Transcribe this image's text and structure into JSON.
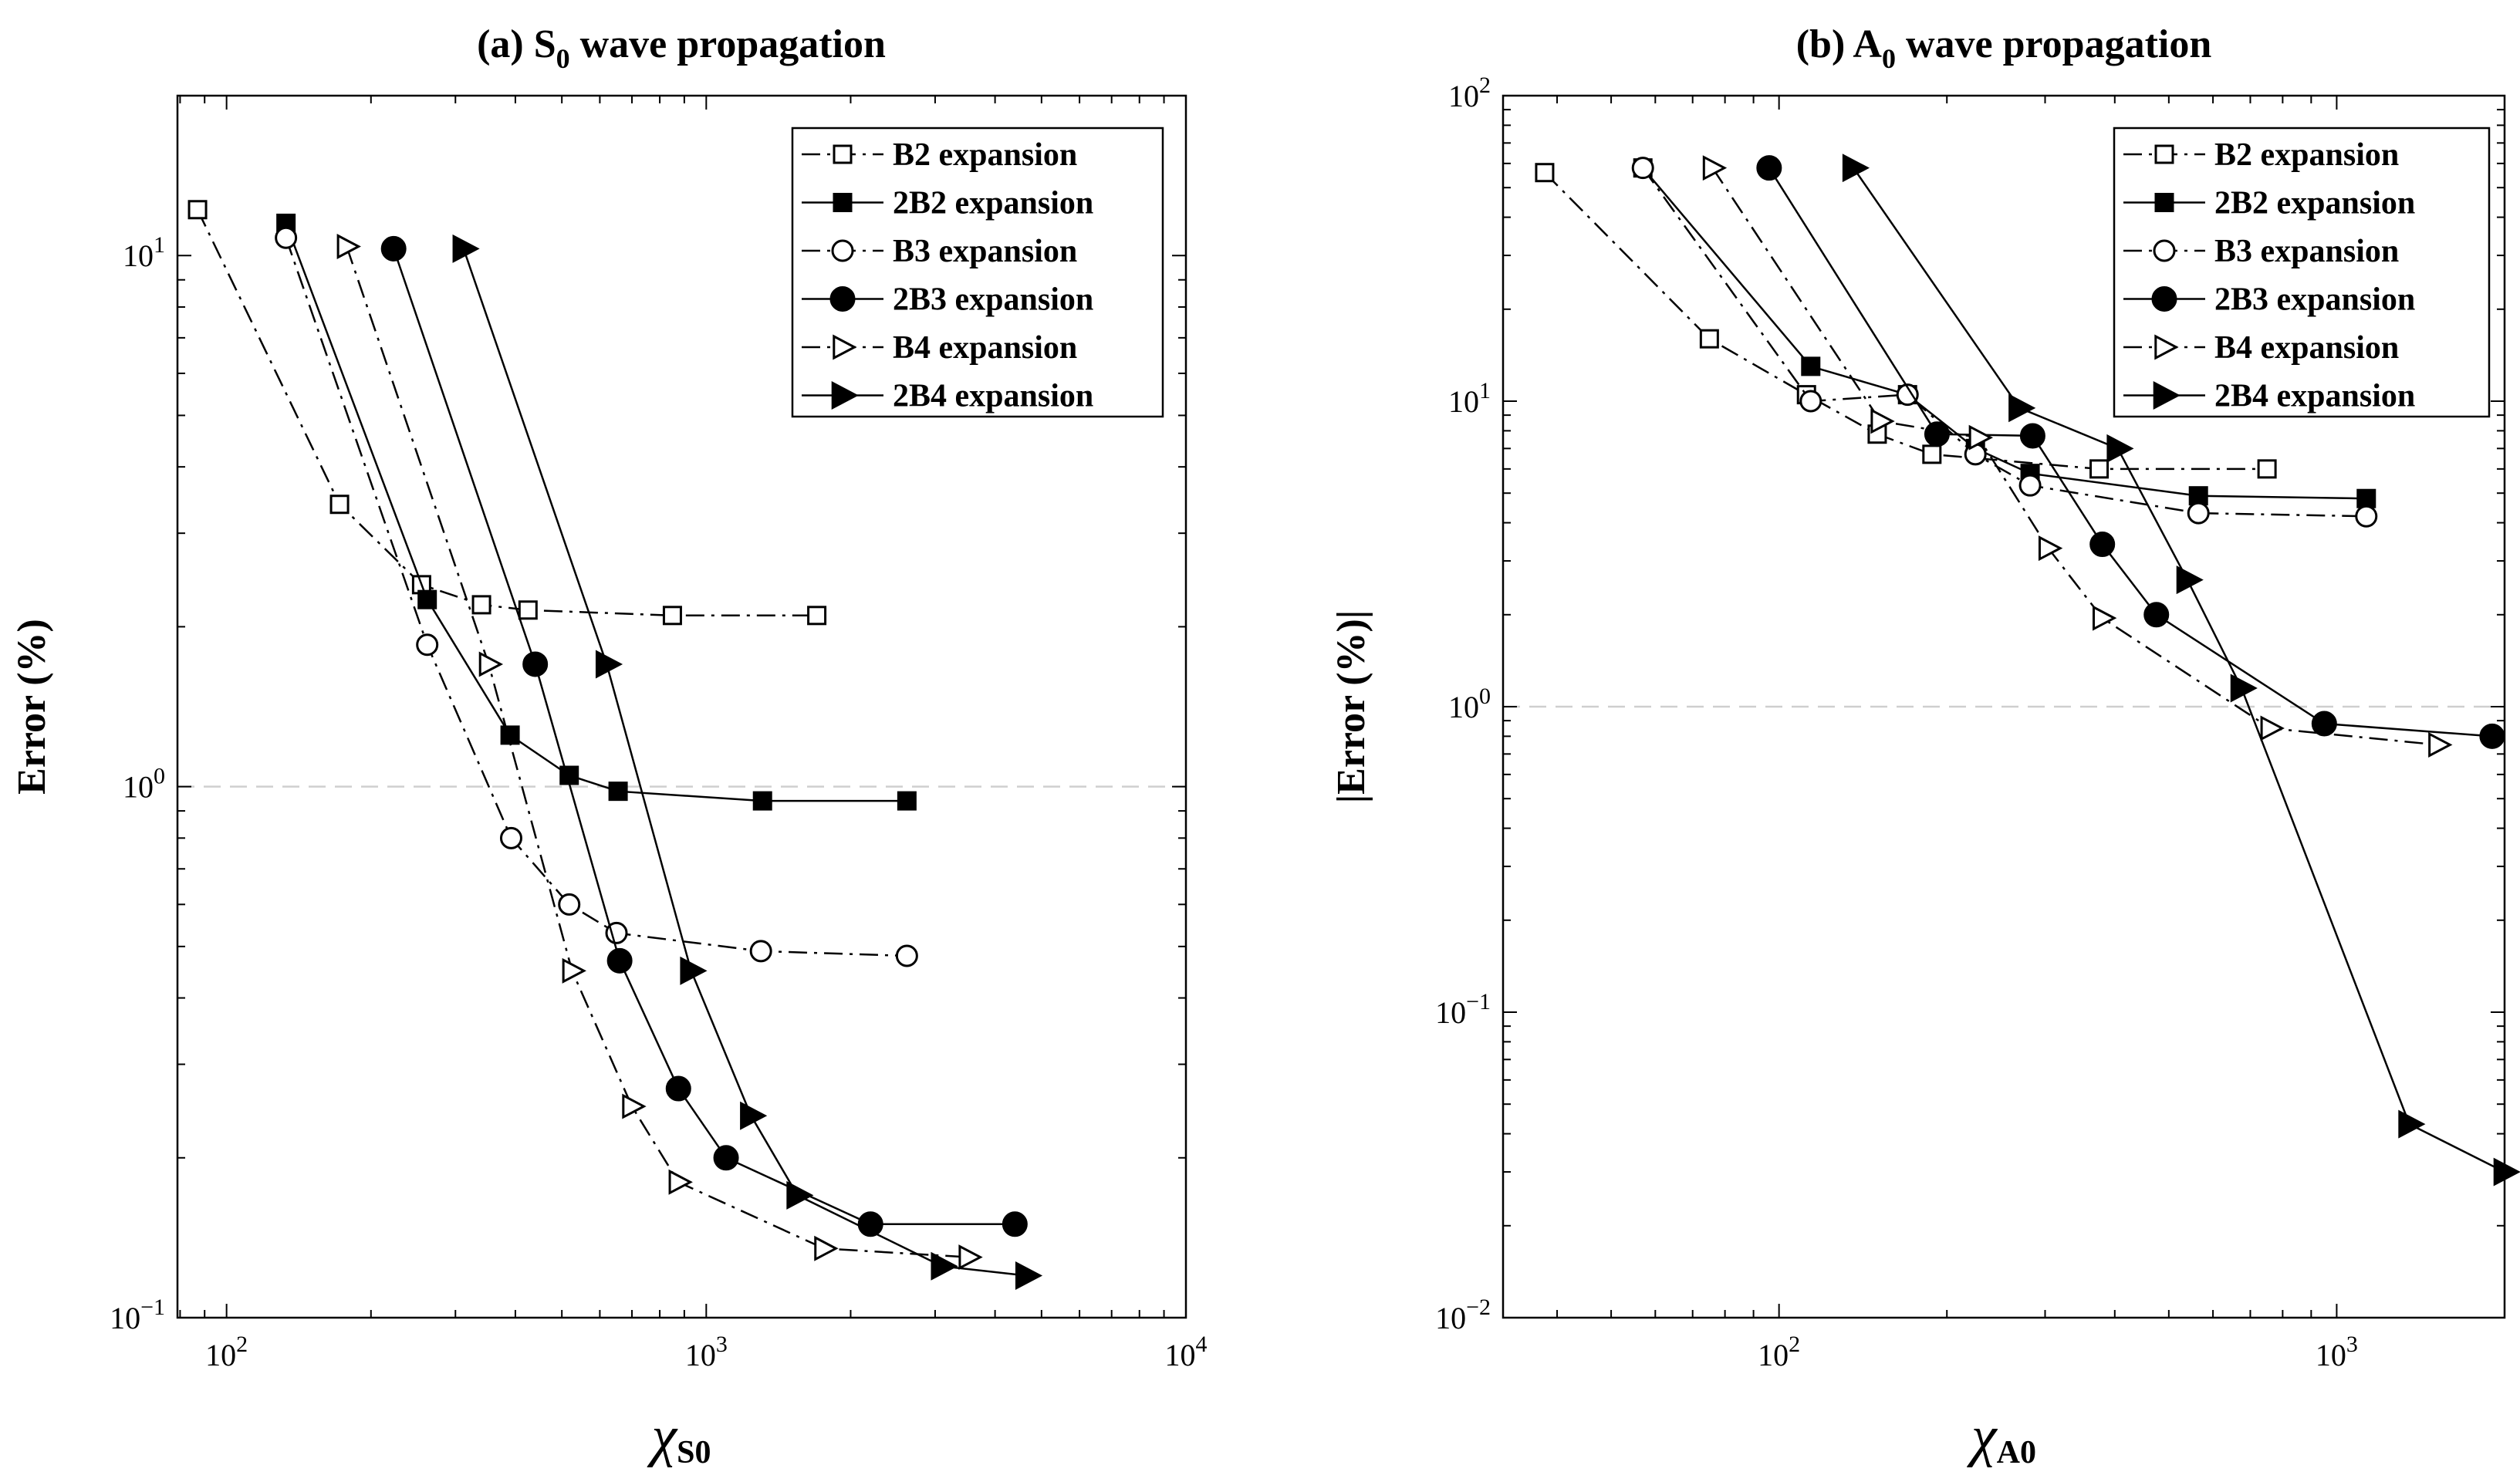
{
  "chart_data": [
    {
      "type": "line",
      "log_x": true,
      "log_y": true,
      "title": "(a) S",
      "title_sub": "0",
      "title_rest": " wave propagation",
      "xlabel": "χ",
      "xlabel_sub": "S0",
      "ylabel": "Error (%)",
      "xlim": [
        79,
        10000
      ],
      "ylim": [
        0.1,
        20
      ],
      "reference_y": 1,
      "x_ticks": [
        {
          "value": 100,
          "base": "10",
          "exp": "2"
        },
        {
          "value": 1000,
          "base": "10",
          "exp": "3"
        },
        {
          "value": 10000,
          "base": "10",
          "exp": "4"
        }
      ],
      "y_ticks": [
        {
          "value": 0.1,
          "base": "10",
          "exp": "−1"
        },
        {
          "value": 1,
          "base": "10",
          "exp": "0"
        },
        {
          "value": 10,
          "base": "10",
          "exp": "1"
        }
      ],
      "legend": {
        "position": "top-right"
      },
      "series": [
        {
          "name": "B2 expansion",
          "marker": "square",
          "filled": false,
          "dash": "dashdot",
          "x": [
            87,
            172,
            255,
            340,
            425,
            850,
            1700
          ],
          "y": [
            12.2,
            3.4,
            2.4,
            2.2,
            2.15,
            2.1,
            2.1
          ]
        },
        {
          "name": "2B2 expansion",
          "marker": "square",
          "filled": true,
          "dash": "solid",
          "x": [
            133,
            262,
            390,
            518,
            655,
            1310,
            2620
          ],
          "y": [
            11.5,
            2.25,
            1.25,
            1.05,
            0.98,
            0.94,
            0.94
          ]
        },
        {
          "name": "B3 expansion",
          "marker": "circle",
          "filled": false,
          "dash": "dashdot",
          "x": [
            133,
            262,
            392,
            518,
            650,
            1300,
            2620
          ],
          "y": [
            10.8,
            1.85,
            0.8,
            0.6,
            0.53,
            0.49,
            0.48
          ]
        },
        {
          "name": "2B3 expansion",
          "marker": "circle",
          "filled": true,
          "dash": "solid",
          "x": [
            223,
            440,
            660,
            875,
            1100,
            2200,
            4400
          ],
          "y": [
            10.3,
            1.7,
            0.47,
            0.27,
            0.2,
            0.15,
            0.15
          ]
        },
        {
          "name": "B4 expansion",
          "marker": "triangle-right",
          "filled": false,
          "dash": "dashdot",
          "x": [
            178,
            352,
            525,
            700,
            875,
            1760,
            3520
          ],
          "y": [
            10.4,
            1.7,
            0.45,
            0.25,
            0.18,
            0.135,
            0.13
          ]
        },
        {
          "name": "2B4 expansion",
          "marker": "triangle-right",
          "filled": true,
          "dash": "solid",
          "x": [
            312,
            620,
            930,
            1240,
            1550,
            3100,
            4650
          ],
          "y": [
            10.3,
            1.7,
            0.45,
            0.24,
            0.17,
            0.125,
            0.12
          ]
        }
      ]
    },
    {
      "type": "line",
      "log_x": true,
      "log_y": true,
      "title": "(b) A",
      "title_sub": "0",
      "title_rest": " wave propagation",
      "xlabel": "χ",
      "xlabel_sub": "A0",
      "ylabel": "|Error (%)|",
      "xlim": [
        32,
        2000
      ],
      "ylim": [
        0.01,
        100
      ],
      "reference_y": 1,
      "x_ticks": [
        {
          "value": 100,
          "base": "10",
          "exp": "2"
        },
        {
          "value": 1000,
          "base": "10",
          "exp": "3"
        }
      ],
      "y_ticks": [
        {
          "value": 0.01,
          "base": "10",
          "exp": "−2"
        },
        {
          "value": 0.1,
          "base": "10",
          "exp": "−1"
        },
        {
          "value": 1,
          "base": "10",
          "exp": "0"
        },
        {
          "value": 10,
          "base": "10",
          "exp": "1"
        },
        {
          "value": 100,
          "base": "10",
          "exp": "2"
        }
      ],
      "legend": {
        "position": "top-right"
      },
      "series": [
        {
          "name": "B2 expansion",
          "marker": "square",
          "filled": false,
          "dash": "dashdot",
          "x": [
            38,
            75,
            112,
            150,
            188,
            375,
            750
          ],
          "y": [
            56,
            16,
            10.5,
            7.8,
            6.7,
            6,
            6
          ]
        },
        {
          "name": "2B2 expansion",
          "marker": "square",
          "filled": true,
          "dash": "solid",
          "x": [
            57,
            114,
            170,
            225,
            282,
            565,
            1130
          ],
          "y": [
            58,
            13,
            10.5,
            7,
            5.8,
            4.9,
            4.8
          ]
        },
        {
          "name": "B3 expansion",
          "marker": "circle",
          "filled": false,
          "dash": "dashdot",
          "x": [
            57,
            114,
            170,
            225,
            282,
            565,
            1130
          ],
          "y": [
            58,
            10,
            10.5,
            6.7,
            5.3,
            4.3,
            4.2
          ]
        },
        {
          "name": "2B3 expansion",
          "marker": "circle",
          "filled": true,
          "dash": "solid",
          "x": [
            96,
            192,
            285,
            380,
            475,
            950,
            1900
          ],
          "y": [
            58,
            7.8,
            7.7,
            3.4,
            2,
            0.88,
            0.8
          ]
        },
        {
          "name": "B4 expansion",
          "marker": "triangle-right",
          "filled": false,
          "dash": "dashdot",
          "x": [
            76,
            152,
            228,
            304,
            380,
            760,
            1520
          ],
          "y": [
            58,
            8.6,
            7.6,
            3.3,
            1.95,
            0.85,
            0.75
          ]
        },
        {
          "name": "2B4 expansion",
          "marker": "triangle-right",
          "filled": true,
          "dash": "solid",
          "x": [
            136,
            270,
            405,
            540,
            675,
            1350,
            2000
          ],
          "y": [
            58,
            9.5,
            7,
            2.6,
            1.15,
            0.043,
            0.03
          ]
        }
      ]
    }
  ]
}
